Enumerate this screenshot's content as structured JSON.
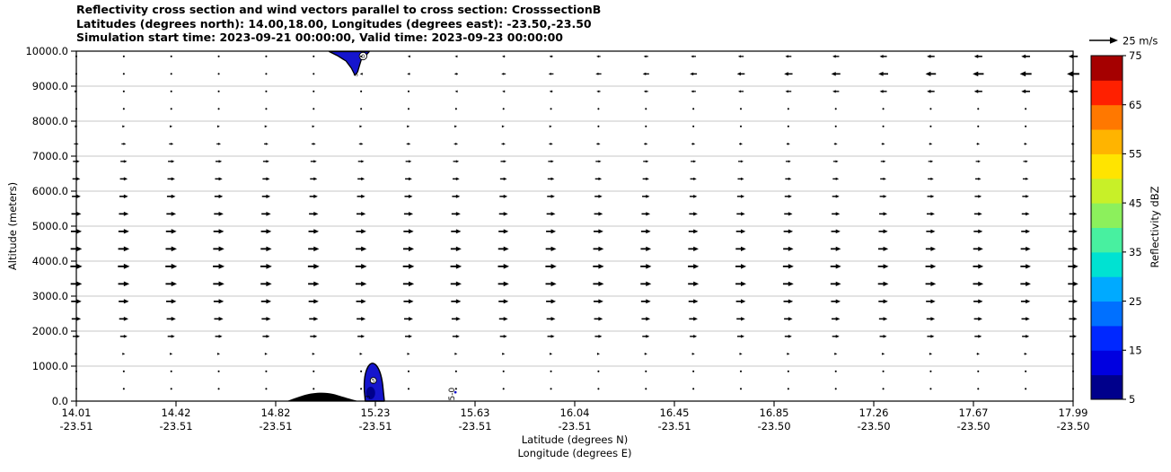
{
  "title": {
    "line1": "Reflectivity cross section and wind vectors parallel to cross section: CrosssectionB",
    "line2": "Latitudes (degrees north): 14.00,18.00, Longitudes (degrees east): -23.50,-23.50",
    "line3": "Simulation start time: 2023-09-21 00:00:00, Valid time: 2023-09-23 00:00:00"
  },
  "axes": {
    "ylabel": "Altitude (meters)",
    "xlabel_line1": "Latitude (degrees N)",
    "xlabel_line2": "Longitude (degrees E)",
    "y_ticks": [
      "10000.0",
      "9000.0",
      "8000.0",
      "7000.0",
      "6000.0",
      "5000.0",
      "4000.0",
      "3000.0",
      "2000.0",
      "1000.0",
      "0.0"
    ],
    "x_ticks": [
      {
        "lat": "14.01",
        "lon": "-23.51"
      },
      {
        "lat": "14.42",
        "lon": "-23.51"
      },
      {
        "lat": "14.82",
        "lon": "-23.51"
      },
      {
        "lat": "15.23",
        "lon": "-23.51"
      },
      {
        "lat": "15.63",
        "lon": "-23.51"
      },
      {
        "lat": "16.04",
        "lon": "-23.51"
      },
      {
        "lat": "16.45",
        "lon": "-23.51"
      },
      {
        "lat": "16.85",
        "lon": "-23.50"
      },
      {
        "lat": "17.26",
        "lon": "-23.50"
      },
      {
        "lat": "17.67",
        "lon": "-23.50"
      },
      {
        "lat": "17.99",
        "lon": "-23.50"
      }
    ]
  },
  "colorbar": {
    "label": "Reflectivity dBZ",
    "min": 5,
    "max": 75,
    "tick_values": [
      5,
      15,
      25,
      35,
      45,
      55,
      65,
      75
    ],
    "segment_colors_bottom_to_top": [
      "#00008b",
      "#0000e0",
      "#0028ff",
      "#0070ff",
      "#00aaff",
      "#00e2d2",
      "#48f0a0",
      "#8cf05c",
      "#c8f028",
      "#ffe400",
      "#ffb400",
      "#ff7800",
      "#ff2000",
      "#a50000"
    ]
  },
  "wind_legend": {
    "label": "25 m/s",
    "speed_ms": 25
  },
  "chart_data": {
    "type": "heatmap",
    "subtype": "vertical-cross-section-with-wind-vectors",
    "x_axis": {
      "name": "Latitude (degrees N) / Longitude (degrees E)",
      "lat_range": [
        14.01,
        17.99
      ],
      "lon_values": "-23.51 to -23.50"
    },
    "y_axis": {
      "name": "Altitude (meters)",
      "range": [
        0,
        10000
      ],
      "tick_step": 1000
    },
    "grid": "horizontal-only",
    "wind_vector_columns": 22,
    "wind_rows": [
      {
        "alt": 9850,
        "u_start": 1.5,
        "u_end": -9
      },
      {
        "alt": 9350,
        "u_start": 1.5,
        "u_end": -12
      },
      {
        "alt": 8850,
        "u_start": 2.0,
        "u_end": -9
      },
      {
        "alt": 8350,
        "u_start": 1.0,
        "u_end": -1.5
      },
      {
        "alt": 7850,
        "u_start": 2.5,
        "u_end": 1.5
      },
      {
        "alt": 7350,
        "u_start": 4.5,
        "u_end": 3.0
      },
      {
        "alt": 6850,
        "u_start": 6.5,
        "u_end": 4.5
      },
      {
        "alt": 6350,
        "u_start": 7.5,
        "u_end": 5.5
      },
      {
        "alt": 5850,
        "u_start": 8.5,
        "u_end": 6.5
      },
      {
        "alt": 5350,
        "u_start": 9.5,
        "u_end": 7.5
      },
      {
        "alt": 4850,
        "u_start": 10.5,
        "u_end": 8.5
      },
      {
        "alt": 4350,
        "u_start": 11.0,
        "u_end": 9.5
      },
      {
        "alt": 3850,
        "u_start": 11.5,
        "u_end": 10.0
      },
      {
        "alt": 3350,
        "u_start": 11.0,
        "u_end": 10.0
      },
      {
        "alt": 2850,
        "u_start": 10.0,
        "u_end": 9.0
      },
      {
        "alt": 2350,
        "u_start": 9.0,
        "u_end": 8.0
      },
      {
        "alt": 1850,
        "u_start": 7.0,
        "u_end": 7.0
      },
      {
        "alt": 1350,
        "u_start": 2.5,
        "u_end": 3.0
      },
      {
        "alt": 850,
        "u_start": 1.0,
        "u_end": 1.2
      },
      {
        "alt": 350,
        "u_start": 0.8,
        "u_end": 1.0
      }
    ],
    "reflectivity_features": [
      {
        "name": "upper-echo",
        "dbz_range": "5-15",
        "lat_range": [
          15.02,
          15.18
        ],
        "alt_range": [
          9280,
          10000
        ]
      },
      {
        "name": "lower-echo",
        "dbz_range": "5-15",
        "lat_range": [
          15.16,
          15.24
        ],
        "alt_range": [
          0,
          1080
        ]
      }
    ],
    "terrain": {
      "lat_range": [
        14.85,
        15.13
      ],
      "peak_alt_m": 240
    },
    "contour_annotations": [
      {
        "text": "5-0",
        "lat": 15.52,
        "alt": 510,
        "rotation": -90
      }
    ]
  }
}
